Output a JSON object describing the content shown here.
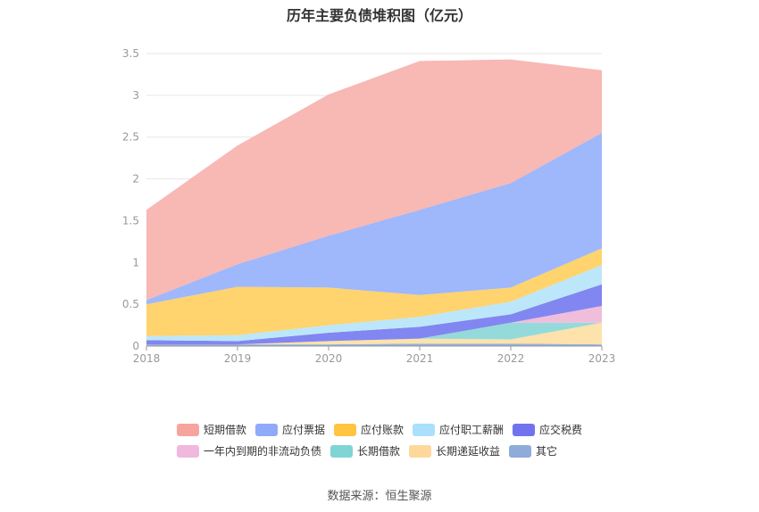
{
  "title": "历年主要负债堆积图（亿元）",
  "source": "数据来源：恒生聚源",
  "chart_data": {
    "type": "area",
    "stacked": true,
    "categories": [
      "2018",
      "2019",
      "2020",
      "2021",
      "2022",
      "2023"
    ],
    "ylim": [
      0,
      3.5
    ],
    "yticks": [
      "0",
      "0.5",
      "1",
      "1.5",
      "2",
      "2.5",
      "3",
      "3.5"
    ],
    "grid": true,
    "legend_position": "bottom",
    "series": [
      {
        "name": "其它",
        "color": "#8eabd9",
        "values": [
          0.02,
          0.02,
          0.02,
          0.03,
          0.03,
          0.02
        ]
      },
      {
        "name": "长期递延收益",
        "color": "#fde0a8",
        "values": [
          0,
          0,
          0.04,
          0.06,
          0.05,
          0.26
        ]
      },
      {
        "name": "长期借款",
        "color": "#8fd8d8",
        "values": [
          0,
          0,
          0,
          0,
          0.2,
          0
        ]
      },
      {
        "name": "一年内到期的非流动负债",
        "color": "#efb9d9",
        "values": [
          0,
          0,
          0,
          0,
          0,
          0.2
        ]
      },
      {
        "name": "应交税费",
        "color": "#7b7ff0",
        "values": [
          0.05,
          0.04,
          0.1,
          0.14,
          0.1,
          0.26
        ]
      },
      {
        "name": "应付职工薪酬",
        "color": "#b8e6fa",
        "values": [
          0.05,
          0.07,
          0.09,
          0.12,
          0.15,
          0.23
        ]
      },
      {
        "name": "应付账款",
        "color": "#ffd166",
        "values": [
          0.38,
          0.58,
          0.45,
          0.26,
          0.17,
          0.2
        ]
      },
      {
        "name": "应付票据",
        "color": "#9ab3fb",
        "values": [
          0.05,
          0.27,
          0.62,
          1.02,
          1.25,
          1.38
        ]
      },
      {
        "name": "短期借款",
        "color": "#f8b4b0",
        "values": [
          1.08,
          1.42,
          1.69,
          1.78,
          1.48,
          0.75
        ]
      }
    ]
  },
  "legend": [
    {
      "name": "短期借款",
      "color": "#f7a39e"
    },
    {
      "name": "应付票据",
      "color": "#8faaf9"
    },
    {
      "name": "应付账款",
      "color": "#ffc440"
    },
    {
      "name": "应付职工薪酬",
      "color": "#a9e0fb"
    },
    {
      "name": "应交税费",
      "color": "#7173ee"
    },
    {
      "name": "一年内到期的非流动负债",
      "color": "#f0b8dc"
    },
    {
      "name": "长期借款",
      "color": "#7fd5d5"
    },
    {
      "name": "长期递延收益",
      "color": "#fdd89a"
    },
    {
      "name": "其它",
      "color": "#8eabd9"
    }
  ]
}
